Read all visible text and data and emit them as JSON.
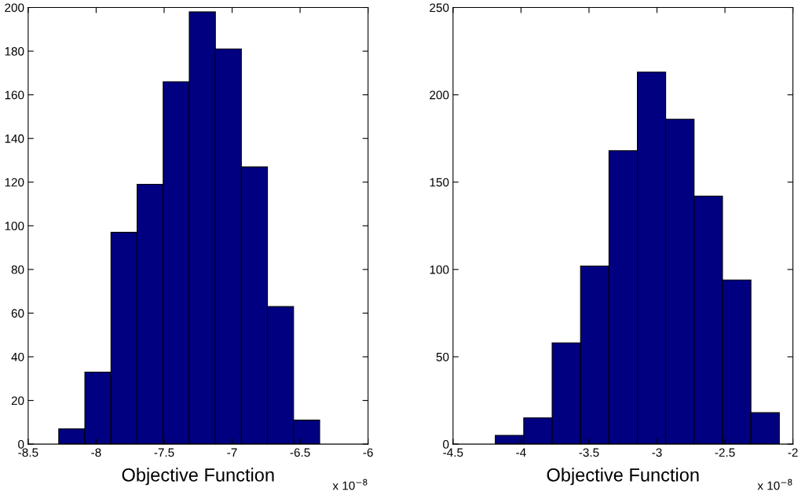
{
  "chart_data": [
    {
      "type": "histogram",
      "xlabel": "Objective Function",
      "color": "#000080",
      "bins": [
        -8.275,
        -8.083,
        -7.891,
        -7.699,
        -7.507,
        -7.315,
        -7.123,
        -6.932,
        -6.74,
        -6.548,
        -6.356
      ],
      "values": [
        7,
        33,
        97,
        119,
        166,
        198,
        181,
        127,
        63,
        11
      ],
      "xlim": [
        -8.5,
        -6
      ],
      "xticks": [
        -8.5,
        -8,
        -7.5,
        -7,
        -6.5,
        -6
      ],
      "ylim": [
        0,
        200
      ],
      "yticks": [
        0,
        20,
        40,
        60,
        80,
        100,
        120,
        140,
        160,
        180,
        200
      ],
      "annotations": [
        "x 10$^{−8}$"
      ]
    },
    {
      "type": "histogram",
      "xlabel": "Objective Function",
      "color": "#000080",
      "bins": [
        -4.189,
        -3.98,
        -3.771,
        -3.562,
        -3.353,
        -3.144,
        -2.936,
        -2.727,
        -2.518,
        -2.309,
        -2.1
      ],
      "values": [
        5,
        15,
        58,
        102,
        168,
        213,
        186,
        142,
        94,
        18
      ],
      "xlim": [
        -4.5,
        -2
      ],
      "xticks": [
        -4.5,
        -4,
        -3.5,
        -3,
        -2.5,
        -2
      ],
      "ylim": [
        0,
        250
      ],
      "yticks": [
        0,
        50,
        100,
        150,
        200,
        250
      ],
      "annotations": [
        "x 10$^{−8}$"
      ]
    }
  ]
}
